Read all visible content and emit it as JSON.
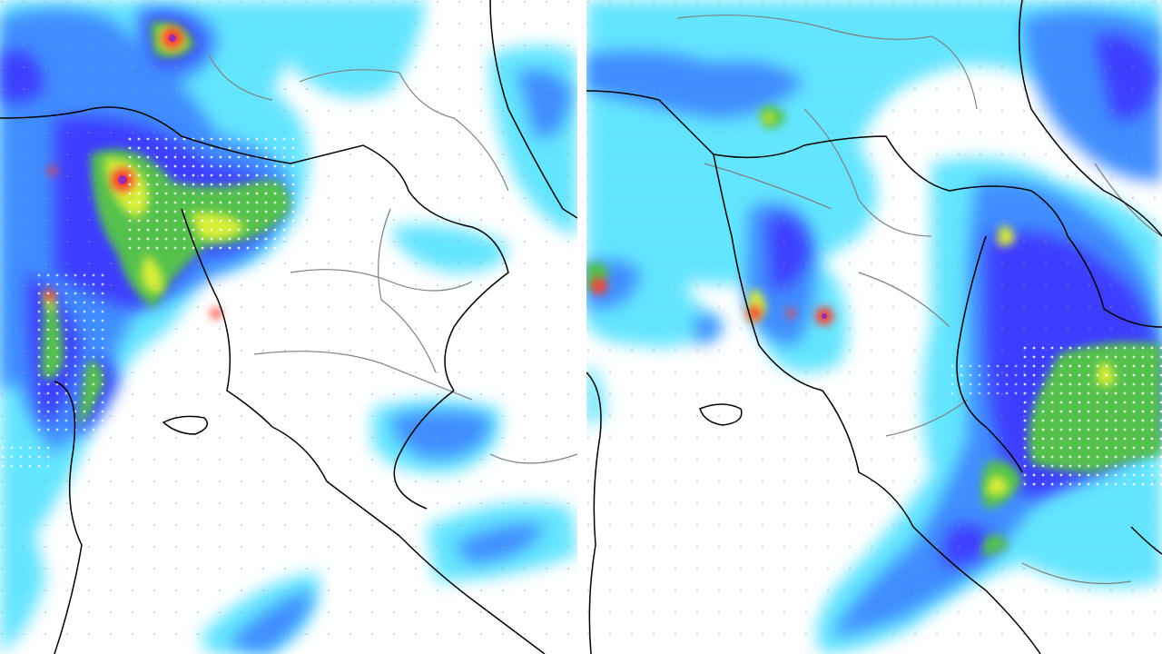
{
  "image": {
    "panels": [
      {
        "id": "left",
        "kind": "precipitation-forecast-map"
      },
      {
        "id": "right",
        "kind": "precipitation-forecast-map"
      }
    ]
  },
  "legend_colors": {
    "sea_background": "#ffffff",
    "light": "#63e5ff",
    "moderate": "#3f8dff",
    "heavy": "#3c3cff",
    "intense": "#54c14e",
    "very_intense": "#d8ef39",
    "extreme": "#ff3a2e",
    "peak": "#9b2ab0",
    "coastline": "#000000",
    "borders": "#808080"
  },
  "icons": {
    "grid_points": "dotted-grid",
    "coast": "coastline-line",
    "regions": "region-border-line"
  }
}
